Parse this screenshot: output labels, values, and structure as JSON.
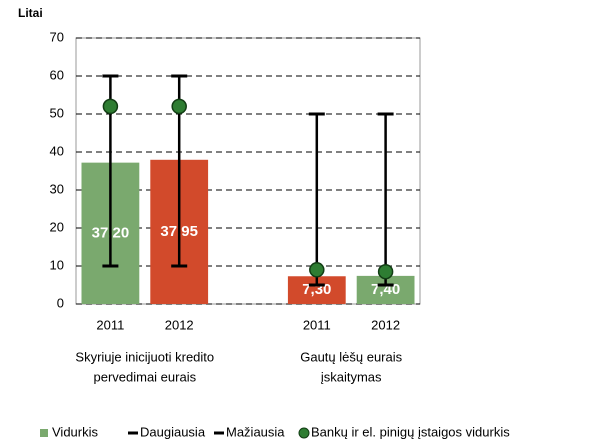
{
  "chart_data": {
    "type": "bar",
    "y_label": "Litai",
    "categories": [
      "2011",
      "2012",
      null,
      "2011",
      "2012"
    ],
    "group_labels": [
      [
        "Skyriuje inicijuoti kredito",
        "pervedimai eurais"
      ],
      [
        "Gautų lėšų eurais",
        "įskaitymas"
      ]
    ],
    "series": [
      {
        "name": "Vidurkis",
        "color": "#7aa96e",
        "colors": [
          "#7aa96e",
          "#d24a2b",
          null,
          "#d24a2b",
          "#7aa96e"
        ],
        "values": [
          37.2,
          37.95,
          null,
          7.3,
          7.4
        ],
        "value_labels": [
          "37,20",
          "37,95",
          null,
          "7,30",
          "7,40"
        ]
      },
      {
        "name": "Daugiausia",
        "color": "#000000",
        "values": [
          60,
          60,
          null,
          50,
          50
        ]
      },
      {
        "name": "Mažiausia",
        "color": "#000000",
        "values": [
          10,
          10,
          null,
          5,
          5
        ]
      },
      {
        "name": "Bankų ir el. pinigų įstaigos vidurkis",
        "color": "#2e7d32",
        "values": [
          52,
          52,
          null,
          9,
          8.5
        ]
      }
    ],
    "ylim": [
      0,
      70
    ],
    "yticks": [
      0,
      10,
      20,
      30,
      40,
      50,
      60,
      70
    ],
    "grid": true
  }
}
